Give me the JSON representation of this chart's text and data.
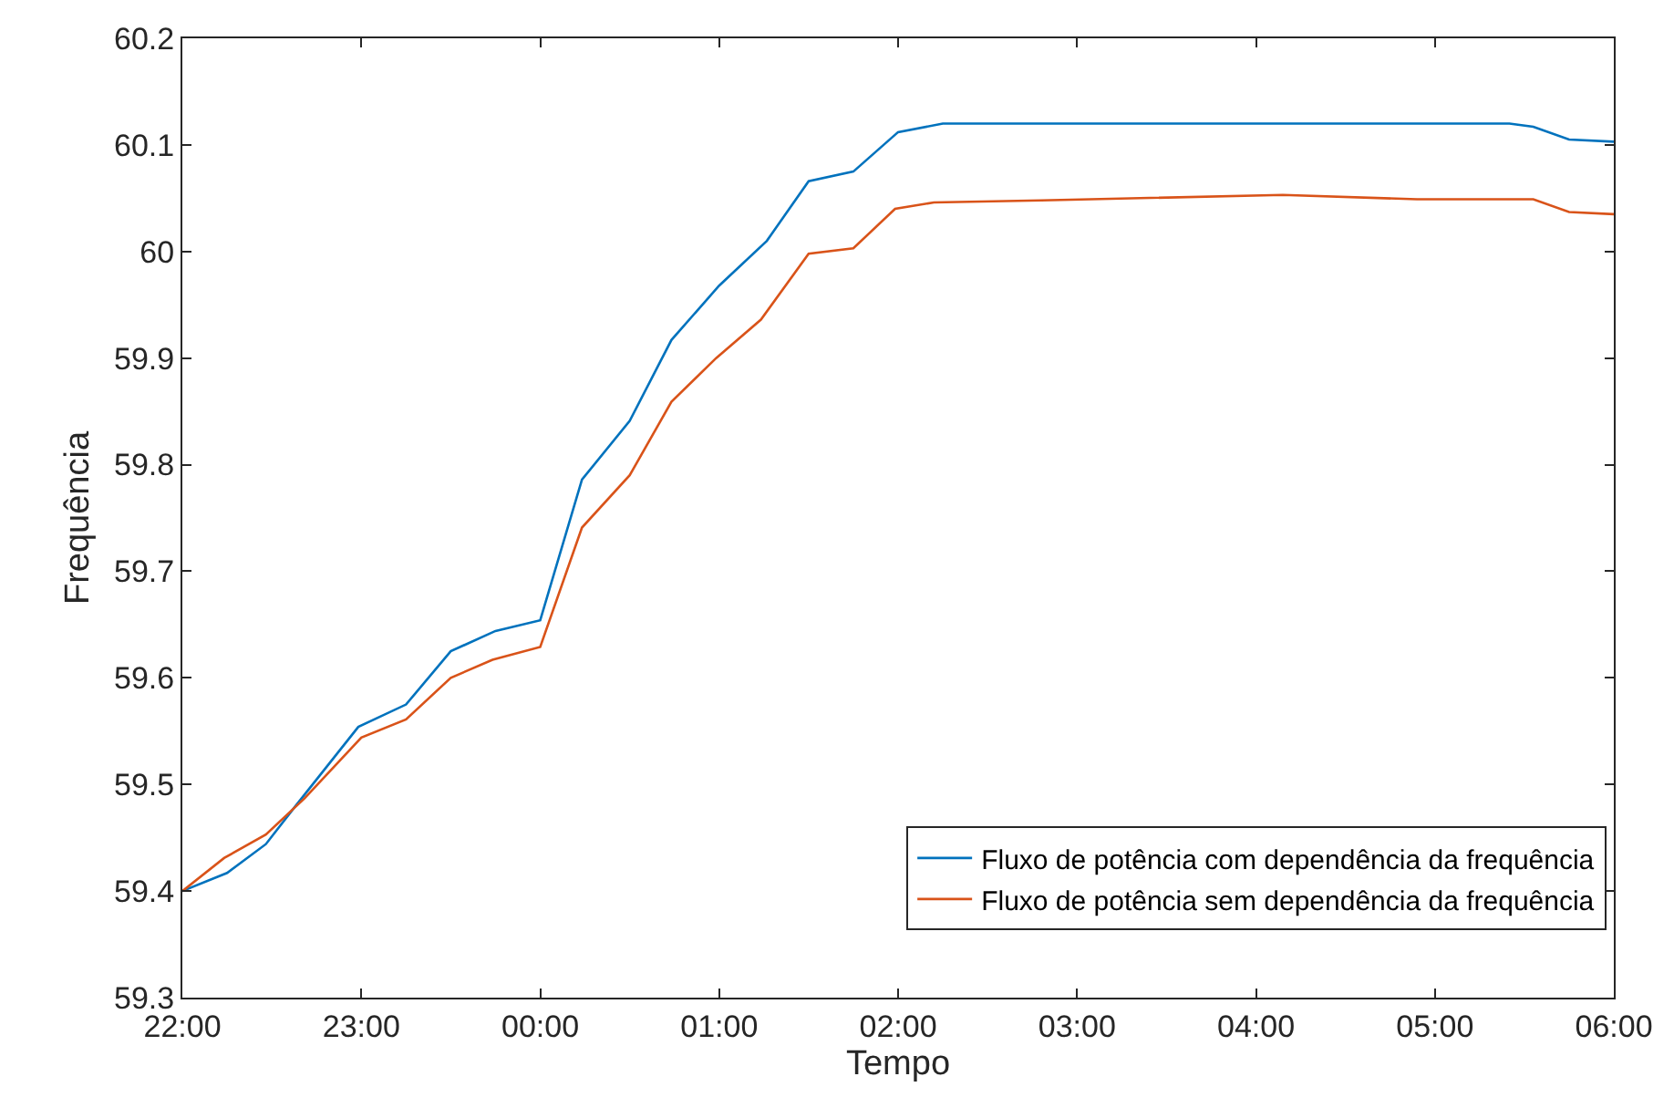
{
  "chart_data": {
    "type": "line",
    "xlabel": "Tempo",
    "ylabel": "Frequência",
    "xlim": [
      "2000-01-01T22:00",
      "2000-01-02T06:00"
    ],
    "ylim": [
      59.3,
      60.2
    ],
    "xticks": [
      {
        "value": "2000-01-01T22:00",
        "label": "22:00"
      },
      {
        "value": "2000-01-01T23:00",
        "label": "23:00"
      },
      {
        "value": "2000-01-02T00:00",
        "label": "00:00"
      },
      {
        "value": "2000-01-02T01:00",
        "label": "01:00"
      },
      {
        "value": "2000-01-02T02:00",
        "label": "02:00"
      },
      {
        "value": "2000-01-02T03:00",
        "label": "03:00"
      },
      {
        "value": "2000-01-02T04:00",
        "label": "04:00"
      },
      {
        "value": "2000-01-02T05:00",
        "label": "05:00"
      },
      {
        "value": "2000-01-02T06:00",
        "label": "06:00"
      }
    ],
    "yticks": [
      59.3,
      59.4,
      59.5,
      59.6,
      59.7,
      59.8,
      59.9,
      60,
      60.1,
      60.2
    ],
    "grid": false,
    "legend": "bottom right",
    "marker": "none",
    "line_style": "solid",
    "series": [
      {
        "name": "Fluxo de potência com dependência da frequência",
        "color": "#0072bd",
        "x": [
          "2000-01-01T22:00",
          "2000-01-01T22:15",
          "2000-01-01T22:28",
          "2000-01-01T22:38",
          "2000-01-01T22:59",
          "2000-01-01T23:15",
          "2000-01-01T23:30",
          "2000-01-01T23:45",
          "2000-01-02T00:00",
          "2000-01-02T00:14",
          "2000-01-02T00:30",
          "2000-01-02T00:44",
          "2000-01-02T01:00",
          "2000-01-02T01:16",
          "2000-01-02T01:30",
          "2000-01-02T01:45",
          "2000-01-02T02:00",
          "2000-01-02T02:15",
          "2000-01-02T03:00",
          "2000-01-02T04:00",
          "2000-01-02T05:00",
          "2000-01-02T05:25",
          "2000-01-02T05:33",
          "2000-01-02T05:45",
          "2000-01-02T06:00"
        ],
        "values": [
          59.4,
          59.417,
          59.444,
          59.48,
          59.554,
          59.575,
          59.625,
          59.644,
          59.654,
          59.786,
          59.841,
          59.917,
          59.968,
          60.01,
          60.066,
          60.075,
          60.112,
          60.12,
          60.12,
          60.12,
          60.12,
          60.12,
          60.117,
          60.105,
          60.103
        ]
      },
      {
        "name": "Fluxo de potência sem dependência da frequência",
        "color": "#d95319",
        "x": [
          "2000-01-01T22:00",
          "2000-01-01T22:14",
          "2000-01-01T22:28",
          "2000-01-01T22:41",
          "2000-01-01T23:00",
          "2000-01-01T23:15",
          "2000-01-01T23:30",
          "2000-01-01T23:44",
          "2000-01-02T00:00",
          "2000-01-02T00:14",
          "2000-01-02T00:30",
          "2000-01-02T00:44",
          "2000-01-02T00:59",
          "2000-01-02T01:14",
          "2000-01-02T01:30",
          "2000-01-02T01:45",
          "2000-01-02T01:59",
          "2000-01-02T02:12",
          "2000-01-02T02:48",
          "2000-01-02T04:09",
          "2000-01-02T04:54",
          "2000-01-02T05:33",
          "2000-01-02T05:45",
          "2000-01-02T06:00"
        ],
        "values": [
          59.4,
          59.431,
          59.453,
          59.487,
          59.544,
          59.561,
          59.6,
          59.617,
          59.629,
          59.741,
          59.79,
          59.859,
          59.9,
          59.936,
          59.998,
          60.003,
          60.04,
          60.046,
          60.048,
          60.053,
          60.049,
          60.049,
          60.037,
          60.035
        ]
      }
    ]
  }
}
